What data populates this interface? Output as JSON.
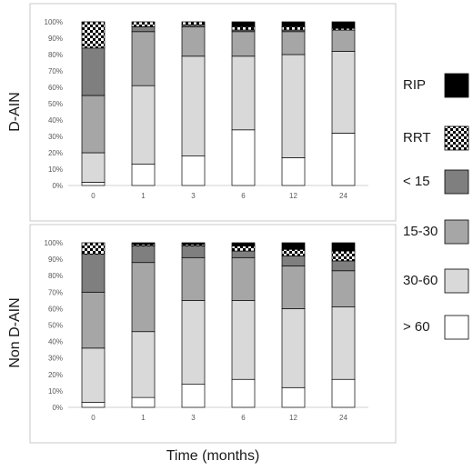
{
  "xlabel": "Time (months)",
  "legend": [
    {
      "key": "rip",
      "label": "RIP",
      "fill": "#000000"
    },
    {
      "key": "rrt",
      "label": "RRT",
      "fill": "checker"
    },
    {
      "key": "lt15",
      "label": "< 15",
      "fill": "#7f7f7f"
    },
    {
      "key": "r15_30",
      "label": "15-30",
      "fill": "#a6a6a6"
    },
    {
      "key": "r30_60",
      "label": "30-60",
      "fill": "#d9d9d9"
    },
    {
      "key": "gt60",
      "label": "> 60",
      "fill": "#ffffff"
    }
  ],
  "chart_data": [
    {
      "type": "bar",
      "stacked": true,
      "facet_label": "D-AIN",
      "categories": [
        "0",
        "1",
        "3",
        "6",
        "12",
        "24"
      ],
      "y_ticks": [
        "0%",
        "10%",
        "20%",
        "30%",
        "40%",
        "50%",
        "60%",
        "70%",
        "80%",
        "90%",
        "100%"
      ],
      "ylim": [
        0,
        100
      ],
      "grid": false,
      "series": [
        {
          "name": "> 60",
          "values": [
            2,
            13,
            18,
            34,
            17,
            32
          ]
        },
        {
          "name": "30-60",
          "values": [
            18,
            48,
            61,
            45,
            63,
            50
          ]
        },
        {
          "name": "15-30",
          "values": [
            35,
            33,
            18,
            15,
            14,
            13
          ]
        },
        {
          "name": "< 15",
          "values": [
            29,
            3,
            1,
            1,
            1,
            0
          ]
        },
        {
          "name": "RRT",
          "values": [
            16,
            3,
            2,
            2,
            2,
            1
          ]
        },
        {
          "name": "RIP",
          "values": [
            0,
            0,
            0,
            3,
            3,
            4
          ]
        }
      ]
    },
    {
      "type": "bar",
      "stacked": true,
      "facet_label": "Non D-AIN",
      "categories": [
        "0",
        "1",
        "3",
        "6",
        "12",
        "24"
      ],
      "y_ticks": [
        "0%",
        "10%",
        "20%",
        "30%",
        "40%",
        "50%",
        "60%",
        "70%",
        "80%",
        "90%",
        "100%"
      ],
      "ylim": [
        0,
        100
      ],
      "grid": false,
      "series": [
        {
          "name": "> 60",
          "values": [
            3,
            6,
            14,
            17,
            12,
            17
          ]
        },
        {
          "name": "30-60",
          "values": [
            33,
            40,
            51,
            48,
            48,
            44
          ]
        },
        {
          "name": "15-30",
          "values": [
            34,
            42,
            26,
            26,
            26,
            22
          ]
        },
        {
          "name": "< 15",
          "values": [
            23,
            10,
            7,
            4,
            6,
            6
          ]
        },
        {
          "name": "RRT",
          "values": [
            7,
            1,
            1,
            3,
            4,
            6
          ]
        },
        {
          "name": "RIP",
          "values": [
            0,
            1,
            1,
            2,
            4,
            5
          ]
        }
      ]
    }
  ]
}
